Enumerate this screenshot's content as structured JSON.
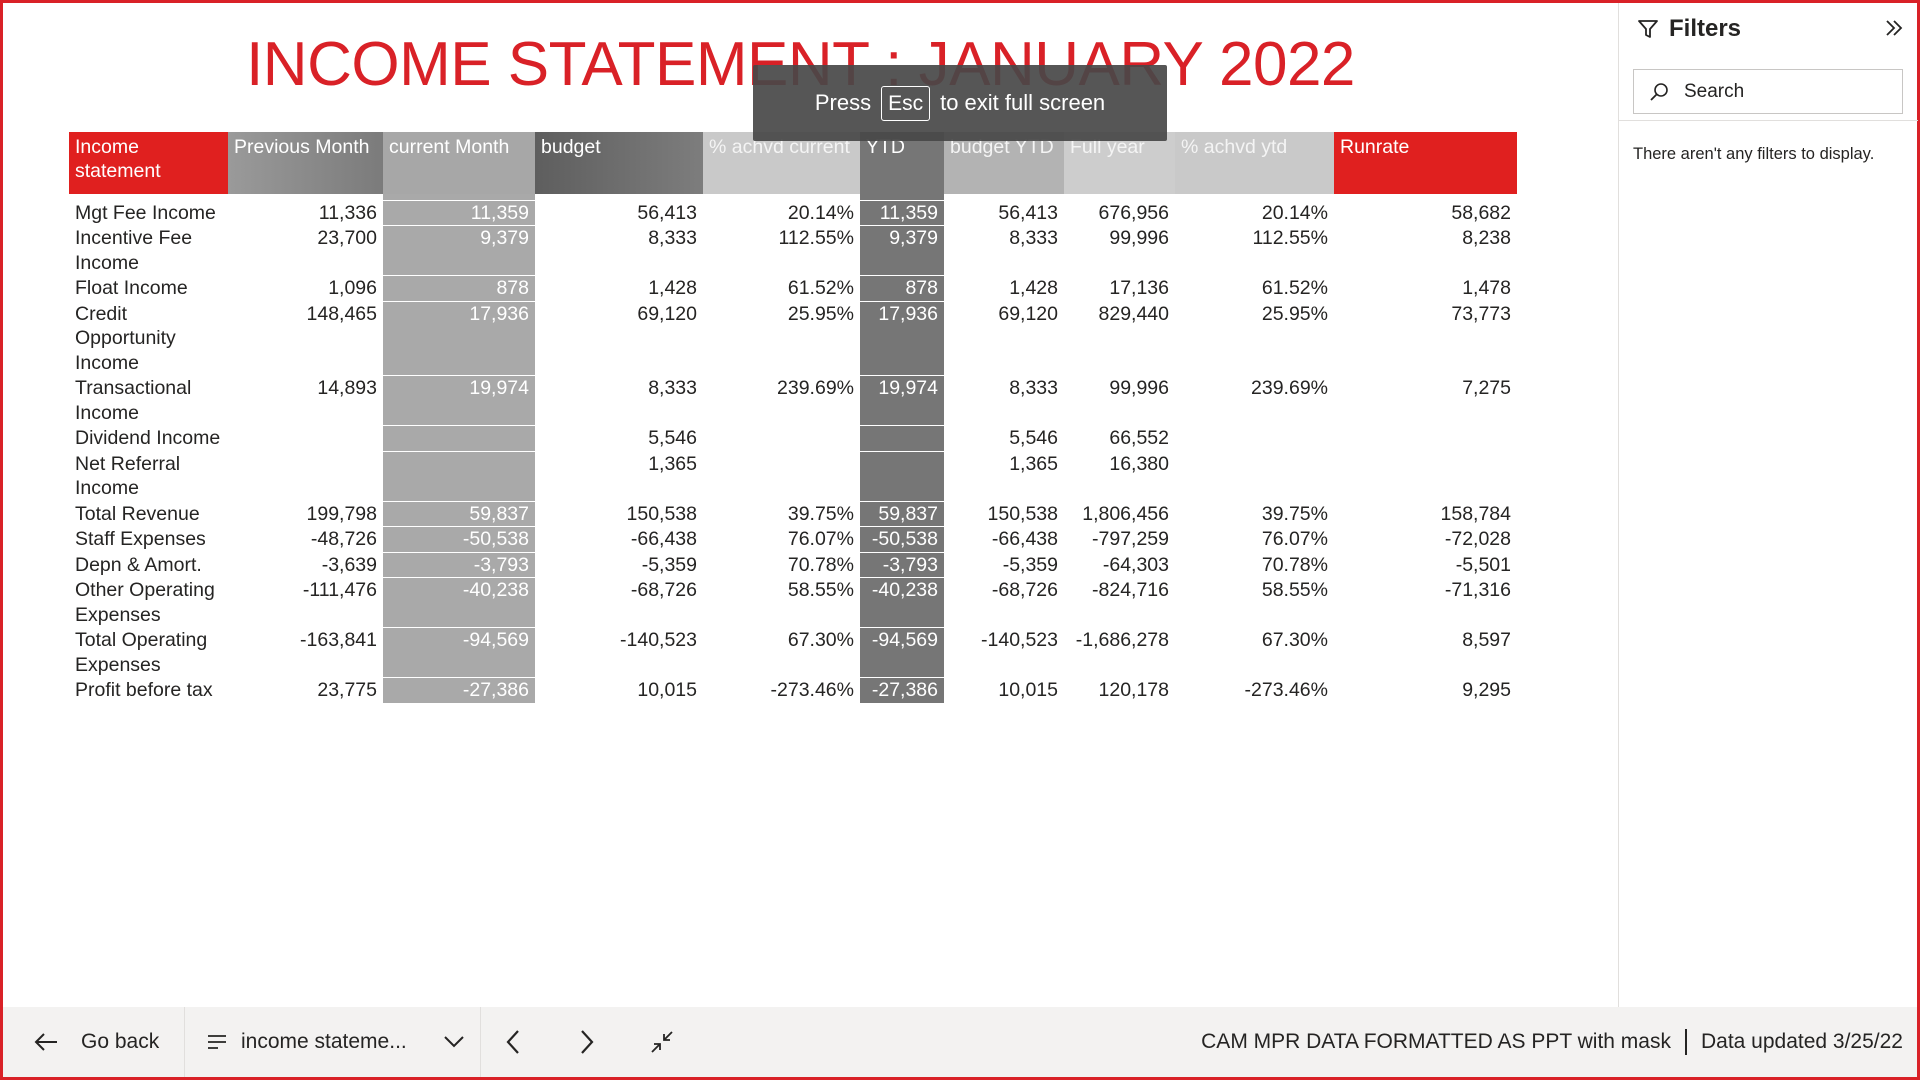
{
  "report": {
    "title": "INCOME STATEMENT : JANUARY 2022",
    "toast": {
      "press": "Press",
      "key": "Esc",
      "suffix": "to exit full screen"
    }
  },
  "table": {
    "headers": [
      "Income statement",
      "Previous Month",
      "current Month",
      "budget",
      "% achvd current",
      "YTD",
      "budget YTD",
      "Full year",
      "% achvd ytd",
      "Runrate"
    ],
    "rows": [
      [
        "Mgt Fee Income",
        "11,336",
        "11,359",
        "56,413",
        "20.14%",
        "11,359",
        "56,413",
        "676,956",
        "20.14%",
        "58,682"
      ],
      [
        "Incentive Fee Income",
        "23,700",
        "9,379",
        "8,333",
        "112.55%",
        "9,379",
        "8,333",
        "99,996",
        "112.55%",
        "8,238"
      ],
      [
        "Float Income",
        "1,096",
        "878",
        "1,428",
        "61.52%",
        "878",
        "1,428",
        "17,136",
        "61.52%",
        "1,478"
      ],
      [
        "Credit Opportunity Income",
        "148,465",
        "17,936",
        "69,120",
        "25.95%",
        "17,936",
        "69,120",
        "829,440",
        "25.95%",
        "73,773"
      ],
      [
        "Transactional Income",
        "14,893",
        "19,974",
        "8,333",
        "239.69%",
        "19,974",
        "8,333",
        "99,996",
        "239.69%",
        "7,275"
      ],
      [
        "Dividend Income",
        "",
        "",
        "5,546",
        "",
        "",
        "5,546",
        "66,552",
        "",
        ""
      ],
      [
        "Net Referral Income",
        "",
        "",
        "1,365",
        "",
        "",
        "1,365",
        "16,380",
        "",
        ""
      ],
      [
        "Total Revenue",
        "199,798",
        "59,837",
        "150,538",
        "39.75%",
        "59,837",
        "150,538",
        "1,806,456",
        "39.75%",
        "158,784"
      ],
      [
        "Staff Expenses",
        "-48,726",
        "-50,538",
        "-66,438",
        "76.07%",
        "-50,538",
        "-66,438",
        "-797,259",
        "76.07%",
        "-72,028"
      ],
      [
        "Depn & Amort.",
        "-3,639",
        "-3,793",
        "-5,359",
        "70.78%",
        "-3,793",
        "-5,359",
        "-64,303",
        "70.78%",
        "-5,501"
      ],
      [
        "Other Operating Expenses",
        "-111,476",
        "-40,238",
        "-68,726",
        "58.55%",
        "-40,238",
        "-68,726",
        "-824,716",
        "58.55%",
        "-71,316"
      ],
      [
        "Total Operating Expenses",
        "-163,841",
        "-94,569",
        "-140,523",
        "67.30%",
        "-94,569",
        "-140,523",
        "-1,686,278",
        "67.30%",
        "8,597"
      ],
      [
        "Profit before tax",
        "23,775",
        "-27,386",
        "10,015",
        "-273.46%",
        "-27,386",
        "10,015",
        "120,178",
        "-273.46%",
        "9,295"
      ]
    ]
  },
  "filters": {
    "title": "Filters",
    "search_placeholder": "Search",
    "empty_message": "There aren't any filters to display."
  },
  "bottom_bar": {
    "go_back": "Go back",
    "page_name": "income stateme...",
    "report_name": "CAM MPR DATA FORMATTED AS PPT with mask",
    "data_updated": "Data updated 3/25/22"
  },
  "colors": {
    "accent": "#d92127",
    "header_red": "#e0201f",
    "ytd_col": "#767676",
    "current_col": "#a9a9a9"
  },
  "icons": [
    "filter-icon",
    "chevron-double-right-icon",
    "search-icon",
    "arrow-left-icon",
    "page-list-icon",
    "chevron-down-icon",
    "chevron-left-icon",
    "chevron-right-icon",
    "exit-fullscreen-icon"
  ]
}
